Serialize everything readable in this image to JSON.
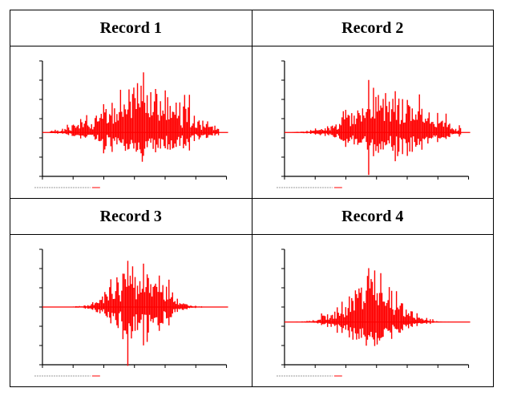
{
  "records": [
    {
      "title": "Record 1"
    },
    {
      "title": "Record 2"
    },
    {
      "title": "Record 3"
    },
    {
      "title": "Record 4"
    }
  ],
  "colors": {
    "signal": "#ff0000",
    "axis": "#000000",
    "border": "#000000"
  }
}
